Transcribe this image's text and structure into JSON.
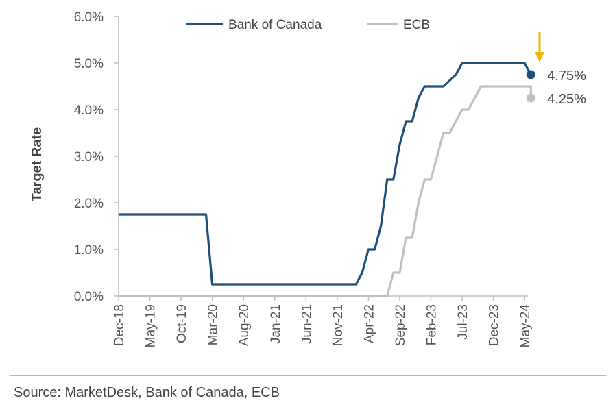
{
  "chart_data": {
    "type": "line",
    "ylabel": "Target Rate",
    "xlabel": "",
    "ylim": [
      0,
      6
    ],
    "y_ticks": [
      "0.0%",
      "1.0%",
      "2.0%",
      "3.0%",
      "4.0%",
      "5.0%",
      "6.0%"
    ],
    "x_ticks": [
      "Dec-18",
      "May-19",
      "Oct-19",
      "Mar-20",
      "Aug-20",
      "Jan-21",
      "Jun-21",
      "Nov-21",
      "Apr-22",
      "Sep-22",
      "Feb-23",
      "Jul-23",
      "Dec-23",
      "May-24"
    ],
    "legend_position": "top-center",
    "series": [
      {
        "name": "Bank of Canada",
        "color": "#1f4e79",
        "end_label": "4.75%",
        "points": [
          [
            "2018-12",
            1.75
          ],
          [
            "2020-02",
            1.75
          ],
          [
            "2020-03",
            0.25
          ],
          [
            "2022-02",
            0.25
          ],
          [
            "2022-03",
            0.5
          ],
          [
            "2022-04",
            1.0
          ],
          [
            "2022-05",
            1.0
          ],
          [
            "2022-06",
            1.5
          ],
          [
            "2022-07",
            2.5
          ],
          [
            "2022-08",
            2.5
          ],
          [
            "2022-09",
            3.25
          ],
          [
            "2022-10",
            3.75
          ],
          [
            "2022-11",
            3.75
          ],
          [
            "2022-12",
            4.25
          ],
          [
            "2023-01",
            4.5
          ],
          [
            "2023-04",
            4.5
          ],
          [
            "2023-06",
            4.75
          ],
          [
            "2023-07",
            5.0
          ],
          [
            "2024-05",
            5.0
          ],
          [
            "2024-06",
            4.75
          ]
        ]
      },
      {
        "name": "ECB",
        "color": "#bfbfbf",
        "end_label": "4.25%",
        "points": [
          [
            "2018-12",
            0.0
          ],
          [
            "2022-07",
            0.0
          ],
          [
            "2022-08",
            0.5
          ],
          [
            "2022-09",
            0.5
          ],
          [
            "2022-10",
            1.25
          ],
          [
            "2022-11",
            1.25
          ],
          [
            "2022-12",
            2.0
          ],
          [
            "2023-01",
            2.5
          ],
          [
            "2023-02",
            2.5
          ],
          [
            "2023-03",
            3.0
          ],
          [
            "2023-04",
            3.5
          ],
          [
            "2023-05",
            3.5
          ],
          [
            "2023-06",
            3.75
          ],
          [
            "2023-07",
            4.0
          ],
          [
            "2023-08",
            4.0
          ],
          [
            "2023-09",
            4.25
          ],
          [
            "2023-10",
            4.5
          ],
          [
            "2024-06",
            4.5
          ],
          [
            "2024-06",
            4.25
          ]
        ]
      }
    ],
    "annotation": {
      "type": "down-arrow",
      "color": "#f2b600"
    }
  },
  "source": "Source: MarketDesk, Bank of Canada, ECB"
}
